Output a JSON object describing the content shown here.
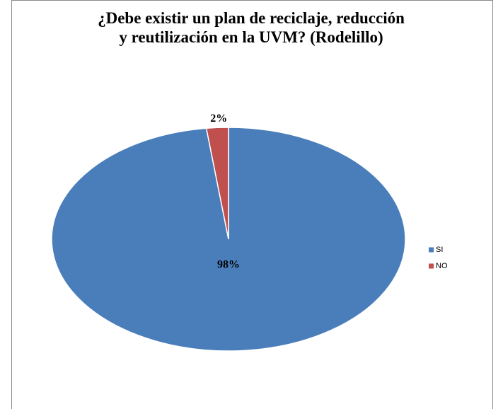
{
  "chart_data": {
    "type": "pie",
    "title": "¿Debe existir un plan de reciclaje, reducción y reutilización en la UVM? (Rodelillo)",
    "categories": [
      "SI",
      "NO"
    ],
    "values": [
      98,
      2
    ],
    "value_labels": [
      "98%",
      "2%"
    ],
    "colors": [
      "#4a7ebb",
      "#c0504d"
    ],
    "legend": "right"
  }
}
